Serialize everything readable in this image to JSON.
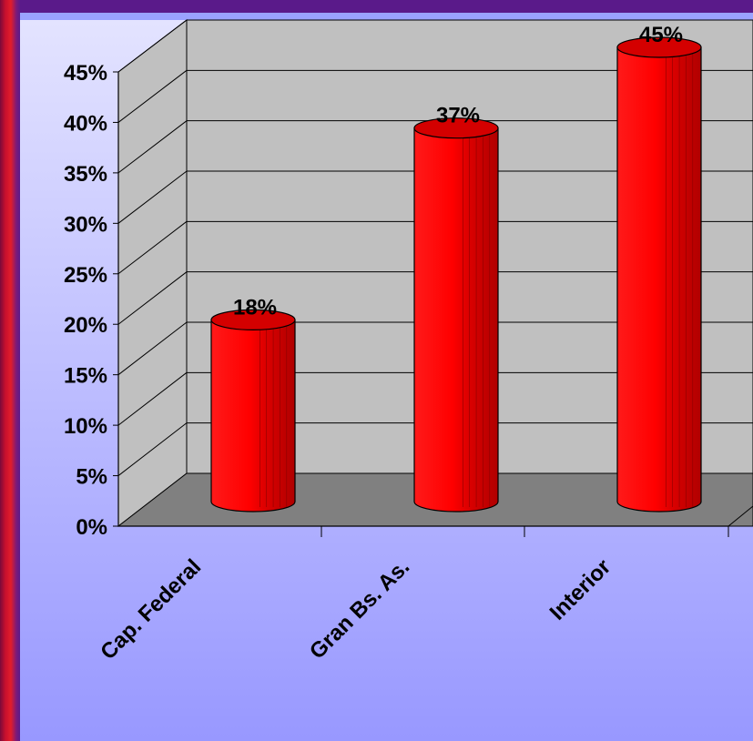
{
  "chart_data": {
    "type": "bar",
    "style": "3d-cylinder",
    "categories": [
      "Cap. Federal",
      "Gran Bs. As.",
      "Interior"
    ],
    "values": [
      18,
      37,
      45
    ],
    "data_labels": [
      "18%",
      "37%",
      "45%"
    ],
    "y_ticks": [
      "0%",
      "5%",
      "10%",
      "15%",
      "20%",
      "25%",
      "30%",
      "35%",
      "40%",
      "45%"
    ],
    "ylim": [
      0,
      45
    ],
    "grid": true,
    "legend": "none",
    "title": "",
    "xlabel": "",
    "ylabel": "",
    "colors": {
      "bar": "#ff0000",
      "bar_dark": "#b80000",
      "wall": "#c0c0c0",
      "floor": "#808080",
      "background_top": "#dcdcff",
      "background_bottom": "#9a9aff",
      "frame": "#c8102e"
    }
  }
}
